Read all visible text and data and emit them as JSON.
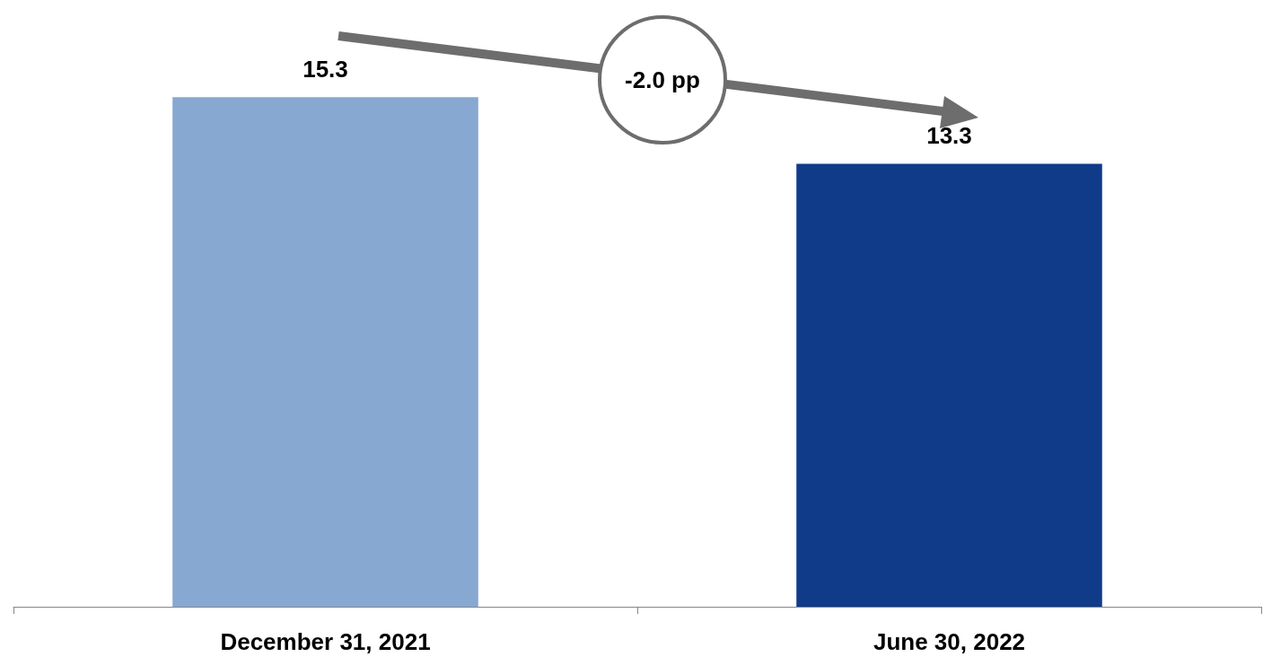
{
  "chart_data": {
    "type": "bar",
    "categories": [
      "December 31, 2021",
      "June 30, 2022"
    ],
    "values": [
      15.3,
      13.3
    ],
    "colors": [
      "#87a8d0",
      "#0f3b89"
    ],
    "data_labels": true,
    "annotations": [
      "-2.0 pp"
    ]
  }
}
